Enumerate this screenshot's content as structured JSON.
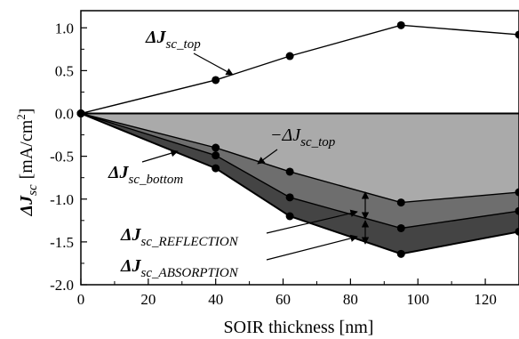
{
  "chart_data": {
    "type": "area",
    "xlabel": "SOIR thickness [nm]",
    "ylabel": {
      "symbol": "ΔJ",
      "subscript": "sc",
      "unit_prefix": "[mA/cm",
      "unit_power": "2",
      "unit_suffix": "]"
    },
    "xlim": [
      0,
      130
    ],
    "ylim": [
      -2.0,
      1.2
    ],
    "x_ticks": [
      0,
      20,
      40,
      60,
      80,
      100,
      120
    ],
    "y_ticks": [
      -2.0,
      -1.5,
      -1.0,
      -0.5,
      0.0,
      0.5,
      1.0
    ],
    "x_tick_labels": [
      "0",
      "20",
      "40",
      "60",
      "80",
      "100",
      "120"
    ],
    "y_tick_labels": [
      "-2.0",
      "-1.5",
      "-1.0",
      "-0.5",
      "0.0",
      "0.5",
      "1.0"
    ],
    "grid": false,
    "x": [
      0,
      40,
      62,
      95,
      130
    ],
    "series": [
      {
        "name": "ΔJsc_top",
        "values": [
          0.0,
          0.39,
          0.67,
          1.03,
          0.92
        ]
      },
      {
        "name": "−ΔJsc_top",
        "values": [
          0.0,
          -0.4,
          -0.68,
          -1.04,
          -0.92
        ]
      },
      {
        "name": "ΔJsc_bottom",
        "values": [
          0.0,
          -0.49,
          -0.98,
          -1.34,
          -1.14
        ]
      },
      {
        "name": "ΔJsc_REFLECTION + ΔJsc_ABSORPTION",
        "values": [
          0.0,
          -0.64,
          -1.2,
          -1.64,
          -1.38
        ]
      }
    ],
    "colors": {
      "band_top": "#aaaaaa",
      "band_reflection": "#6e6e6e",
      "band_absorption": "#444444",
      "line": "#000000"
    },
    "annotations": [
      {
        "main": "ΔJ",
        "sub": "sc_top"
      },
      {
        "main": "−ΔJ",
        "sub": "sc_top"
      },
      {
        "main": "ΔJ",
        "sub": "sc_bottom"
      },
      {
        "main": "ΔJ",
        "sub": "sc_REFLECTION"
      },
      {
        "main": "ΔJ",
        "sub": "sc_ABSORPTION"
      }
    ]
  }
}
